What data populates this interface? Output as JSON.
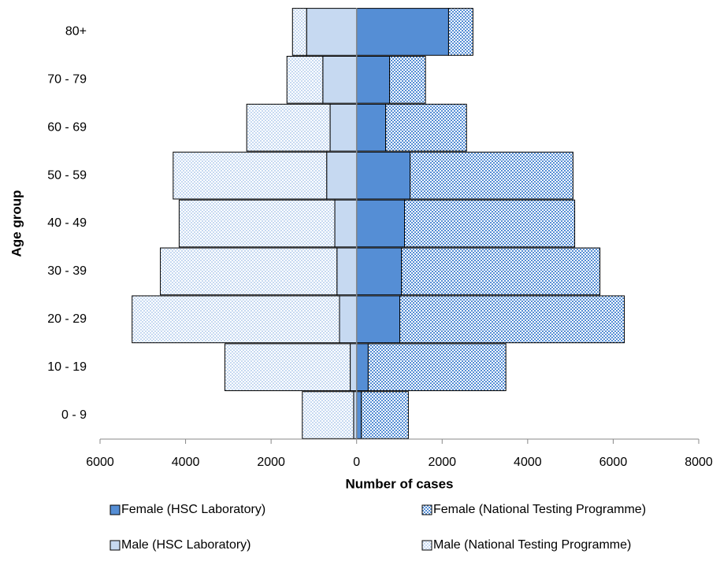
{
  "chart_data": {
    "type": "bar",
    "orientation": "horizontal",
    "stacked": true,
    "xlabel": "Number of cases",
    "ylabel": "Age group",
    "categories": [
      "0 - 9",
      "10 - 19",
      "20 - 29",
      "30 - 39",
      "40 - 49",
      "50 - 59",
      "60 - 69",
      "70 - 79",
      "80+"
    ],
    "series": [
      {
        "name": "Female (HSC Laboratory)",
        "color": "#558ed5",
        "pattern": "solid",
        "values": [
          110,
          270,
          1010,
          1050,
          1120,
          1250,
          680,
          770,
          2150
        ]
      },
      {
        "name": "Female (National Testing Programme)",
        "color": "#558ed5",
        "pattern": "checker",
        "values": [
          1100,
          3220,
          5250,
          4640,
          3980,
          3810,
          1890,
          840,
          570
        ]
      },
      {
        "name": "Male (HSC Laboratory)",
        "color": "#c6d9f1",
        "pattern": "solid",
        "values": [
          -70,
          -150,
          -400,
          -460,
          -510,
          -700,
          -620,
          -790,
          -1170
        ]
      },
      {
        "name": "Male (National Testing Programme)",
        "color": "#c6d9f1",
        "pattern": "checker",
        "values": [
          -1200,
          -2930,
          -4850,
          -4130,
          -3640,
          -3590,
          -1950,
          -840,
          -330
        ]
      }
    ],
    "xlim": [
      -6000,
      8000
    ],
    "xticks": [
      {
        "value": -6000,
        "label": "6000"
      },
      {
        "value": -4000,
        "label": "4000"
      },
      {
        "value": -2000,
        "label": "2000"
      },
      0,
      2000,
      4000,
      6000,
      8000
    ],
    "grid": false,
    "legend": "bottom"
  }
}
